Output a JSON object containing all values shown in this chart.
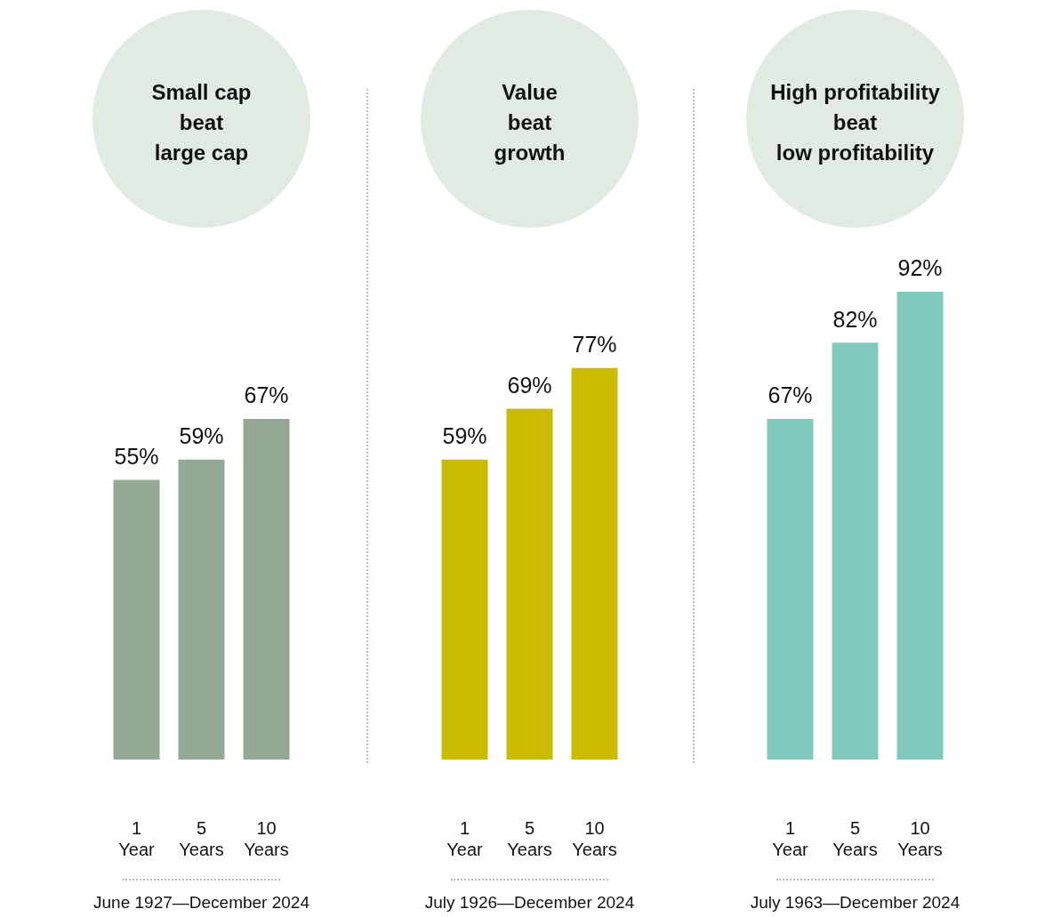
{
  "chart_data": [
    {
      "type": "bar",
      "title": "Small cap\nbeat\nlarge cap",
      "categories": [
        "1 Year",
        "5 Years",
        "10 Years"
      ],
      "values": [
        55,
        59,
        67
      ],
      "color": "#94a994",
      "value_labels": [
        "55%",
        "59%",
        "67%"
      ],
      "annotations": [
        "June 1927—December 2024"
      ]
    },
    {
      "type": "bar",
      "title": "Value\nbeat\ngrowth",
      "categories": [
        "1 Year",
        "5 Years",
        "10 Years"
      ],
      "values": [
        59,
        69,
        77
      ],
      "color": "#cbbb00",
      "value_labels": [
        "59%",
        "69%",
        "77%"
      ],
      "annotations": [
        "July 1926—December 2024"
      ]
    },
    {
      "type": "bar",
      "title": "High profitability\nbeat\nlow profitability",
      "categories": [
        "1 Year",
        "5 Years",
        "10 Years"
      ],
      "values": [
        67,
        82,
        92
      ],
      "color": "#82c9bd",
      "value_labels": [
        "67%",
        "82%",
        "92%"
      ],
      "annotations": [
        "July 1963—December 2024"
      ]
    }
  ]
}
